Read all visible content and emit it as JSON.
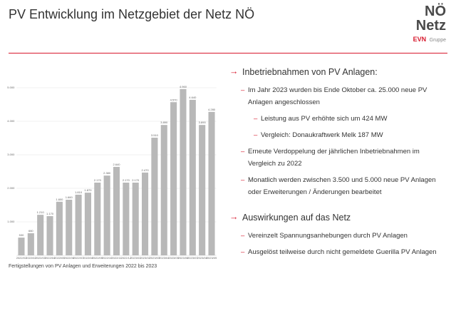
{
  "header": {
    "title": "PV Entwicklung im Netzgebiet der Netz NÖ"
  },
  "logo": {
    "line1": "NÖ",
    "line2": "Netz",
    "brand": "EVN",
    "group": "Gruppe"
  },
  "chart_data": {
    "type": "bar",
    "caption": "Fertigstellungen von PV Anlagen und Erweiterungen 2022 bis 2023",
    "categories": [
      "2022/01",
      "2022/02",
      "2022/03",
      "2022/04",
      "2022/05",
      "2022/06",
      "2022/07",
      "2022/08",
      "2022/09",
      "2022/10",
      "2022/11",
      "2022/12",
      "2023/01",
      "2023/02",
      "2023/03",
      "2023/04",
      "2023/05",
      "2023/06",
      "2023/07",
      "2023/08",
      "2023/09"
    ],
    "values": [
      530,
      660,
      1210,
      1170,
      1600,
      1660,
      1810,
      1870,
      2170,
      2380,
      2640,
      2170,
      2170,
      2470,
      3510,
      3890,
      4570,
      4960,
      4640,
      3890,
      4280
    ],
    "value_labels": [
      "530",
      "660",
      "1.210",
      "1.170",
      "1.600",
      "1.660",
      "1.810",
      "1.870",
      "2.170",
      "2.380",
      "2.640",
      "2.170",
      "2.170",
      "2.470",
      "3.510",
      "3.890",
      "4.570",
      "4.960",
      "4.640",
      "3.890",
      "4.280"
    ],
    "color": "#b8b8b8",
    "ylim": [
      0,
      5200
    ],
    "yticks": [
      {
        "value": 1000,
        "label": "1.000"
      },
      {
        "value": 2000,
        "label": "2.000"
      },
      {
        "value": 3000,
        "label": "3.000"
      },
      {
        "value": 4000,
        "label": "4.000"
      },
      {
        "value": 5000,
        "label": "5.000"
      }
    ],
    "grid": true
  },
  "sections": [
    {
      "heading": "Inbetriebnahmen von PV Anlagen:",
      "bullets": [
        {
          "text": "Im Jahr 2023 wurden bis Ende Oktober ca. 25.000 neue PV Anlagen angeschlossen",
          "sub": [
            "Leistung aus PV erhöhte sich um 424 MW",
            "Vergleich: Donaukraftwerk Melk 187 MW"
          ]
        },
        {
          "text": "Erneute Verdoppelung der jährlichen Inbetriebnahmen im Vergleich zu 2022"
        },
        {
          "text": "Monatlich werden zwischen 3.500 und 5.000 neue PV Anlagen oder Erweiterungen / Änderungen bearbeitet"
        }
      ]
    },
    {
      "heading": "Auswirkungen auf das Netz",
      "bullets": [
        {
          "text": "Vereinzelt Spannungsanhebungen durch PV Anlagen"
        },
        {
          "text": "Ausgelöst teilweise durch nicht gemeldete Guerilla PV Anlagen"
        }
      ]
    }
  ]
}
